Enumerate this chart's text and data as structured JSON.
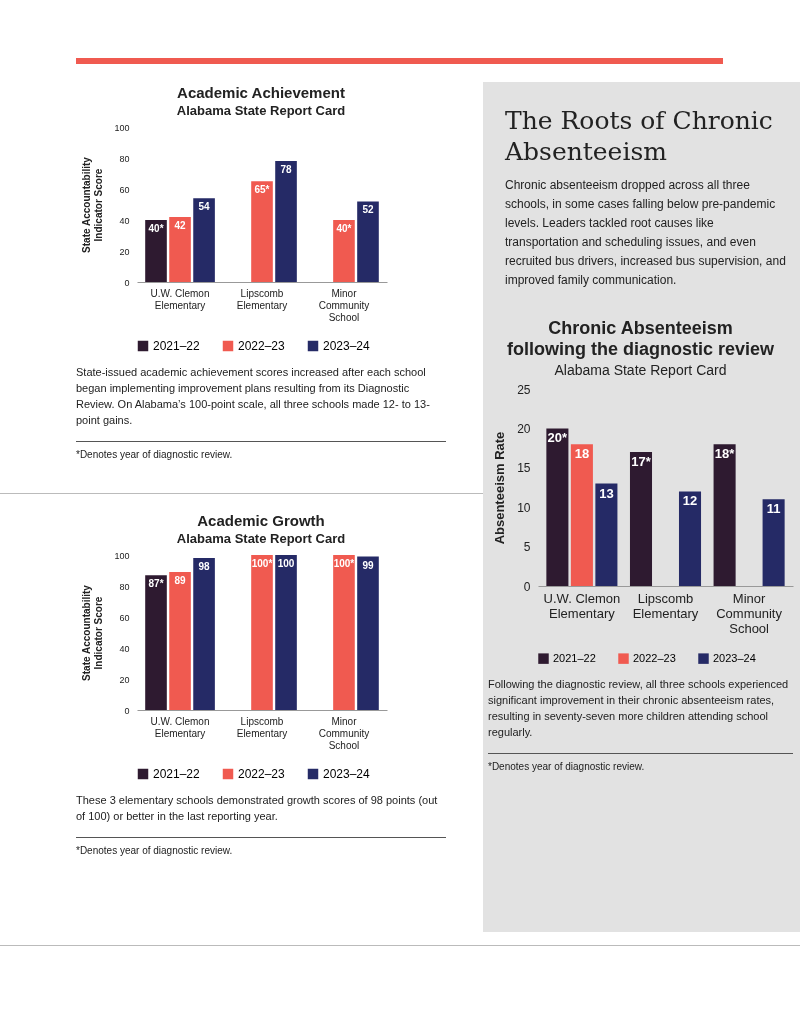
{
  "chart_data": [
    {
      "type": "bar",
      "title": "Academic Achievement",
      "subtitle": "Alabama State Report Card",
      "ylabel": "State Accountability Indicator Score",
      "categories": [
        "U.W. Clemon Elementary",
        "Lipscomb Elementary",
        "Minor Community School"
      ],
      "ylim": [
        0,
        100
      ],
      "yticks": [
        0,
        20,
        40,
        60,
        80,
        100
      ],
      "legend": "bottom",
      "series": [
        {
          "name": "2021–22",
          "color": "#2e1a30",
          "values": [
            40,
            null,
            null
          ],
          "value_labels": [
            "40*",
            null,
            null
          ]
        },
        {
          "name": "2022–23",
          "color": "#f05a50",
          "values": [
            42,
            65,
            40
          ],
          "value_labels": [
            "42",
            "65*",
            "40*"
          ]
        },
        {
          "name": "2023–24",
          "color": "#252a66",
          "values": [
            54,
            78,
            52
          ],
          "value_labels": [
            "54",
            "78",
            "52"
          ]
        }
      ],
      "annotations": [
        "State-issued academic achievement scores increased after each school began implementing improvement plans resulting from its Diagnostic Review. On Alabama’s 100-point scale, all three schools made 12- to 13-point gains.",
        "*Denotes year of diagnostic review."
      ]
    },
    {
      "type": "bar",
      "title": "Academic Growth",
      "subtitle": "Alabama State Report Card",
      "ylabel": "State Accountability Indicator Score",
      "categories": [
        "U.W. Clemon Elementary",
        "Lipscomb Elementary",
        "Minor Community School"
      ],
      "ylim": [
        0,
        100
      ],
      "yticks": [
        0,
        20,
        40,
        60,
        80,
        100
      ],
      "legend": "bottom",
      "series": [
        {
          "name": "2021–22",
          "color": "#2e1a30",
          "values": [
            87,
            null,
            null
          ],
          "value_labels": [
            "87*",
            null,
            null
          ]
        },
        {
          "name": "2022–23",
          "color": "#f05a50",
          "values": [
            89,
            100,
            100
          ],
          "value_labels": [
            "89",
            "100*",
            "100*"
          ]
        },
        {
          "name": "2023–24",
          "color": "#252a66",
          "values": [
            98,
            100,
            99
          ],
          "value_labels": [
            "98",
            "100",
            "99"
          ]
        }
      ],
      "annotations": [
        "These 3 elementary schools demonstrated growth scores of 98 points (out of 100) or better in the last reporting year.",
        "*Denotes year of diagnostic review."
      ]
    },
    {
      "type": "other",
      "title": "The Roots of Chronic Absenteeism",
      "annotations": [
        "Chronic absenteeism dropped across all three schools, in some cases falling below pre-pandemic levels. Leaders tackled root causes like transportation and scheduling issues, and even recruited bus drivers, increased bus supervision, and improved family communication."
      ]
    },
    {
      "type": "bar",
      "title": "Chronic Absenteeism\nfollowing the diagnostic review",
      "subtitle": "Alabama State Report Card",
      "ylabel": "Absenteeism Rate",
      "categories": [
        "U.W. Clemon Elementary",
        "Lipscomb Elementary",
        "Minor Community School"
      ],
      "ylim": [
        0,
        25
      ],
      "yticks": [
        0,
        5,
        10,
        15,
        20,
        25
      ],
      "legend": "bottom",
      "series": [
        {
          "name": "2021–22",
          "color": "#2e1a30",
          "values": [
            20,
            17,
            18
          ],
          "value_labels": [
            "20*",
            "17*",
            "18*"
          ]
        },
        {
          "name": "2022–23",
          "color": "#f05a50",
          "values": [
            18,
            null,
            null
          ],
          "value_labels": [
            "18",
            null,
            null
          ]
        },
        {
          "name": "2023–24",
          "color": "#252a66",
          "values": [
            13,
            12,
            11
          ],
          "value_labels": [
            "13",
            "12",
            "11"
          ]
        }
      ],
      "annotations": [
        "Following the diagnostic review, all three schools experienced significant improvement in their chronic absenteeism rates, resulting in seventy-seven more children attending school regularly.",
        "*Denotes year of diagnostic review."
      ]
    }
  ]
}
